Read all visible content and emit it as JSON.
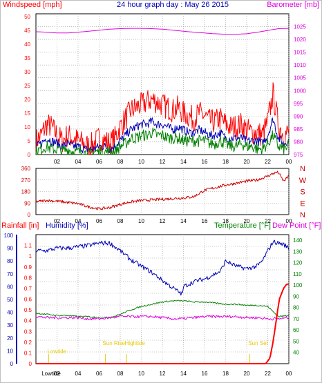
{
  "chart_data": [
    {
      "type": "line",
      "title": "24 hour graph day : May 26 2015",
      "ylabel_left": "Windspeed [mph]",
      "ylabel_right": "Barometer [mb]",
      "ylim_left": [
        0,
        50
      ],
      "ylim_right": [
        975,
        1030
      ],
      "yticks_left": [
        "0",
        "5",
        "10",
        "15",
        "20",
        "25",
        "30",
        "35",
        "40",
        "45",
        "50"
      ],
      "yticks_right": [
        "975",
        "980",
        "985",
        "990",
        "995",
        "1000",
        "1005",
        "1010",
        "1015",
        "1020",
        "1025"
      ],
      "xlim": [
        0,
        24
      ],
      "xticks": [
        "02",
        "04",
        "06",
        "08",
        "10",
        "12",
        "14",
        "16",
        "18",
        "20",
        "22",
        "00"
      ],
      "grid": true,
      "colors": {
        "gust": "#ff0000",
        "average": "#0000b4",
        "wind": "#008000",
        "barometer": "#e000e0"
      },
      "series": [
        {
          "key": "gust",
          "x": [
            0,
            0.5,
            1,
            1.5,
            2,
            2.5,
            3,
            3.5,
            4,
            4.5,
            5,
            5.5,
            6,
            6.5,
            7,
            7.5,
            8,
            8.5,
            9,
            9.5,
            10,
            10.5,
            11,
            11.5,
            12,
            12.5,
            13,
            13.5,
            14,
            14.5,
            15,
            15.5,
            16,
            16.5,
            17,
            17.5,
            18,
            18.5,
            19,
            19.5,
            20,
            20.5,
            21,
            21.5,
            22,
            22.5,
            23,
            23.5,
            24
          ],
          "values": [
            5,
            7,
            11,
            10,
            7,
            5,
            7,
            6,
            5,
            4,
            3,
            4,
            6,
            5,
            4,
            6,
            10,
            13,
            16,
            17,
            18,
            19,
            20,
            19,
            18,
            17,
            16,
            17,
            15,
            14,
            13,
            15,
            14,
            12,
            12,
            13,
            11,
            10,
            10,
            11,
            9,
            8,
            8,
            7,
            12,
            22,
            11,
            7,
            8
          ]
        },
        {
          "key": "average",
          "x": [
            0,
            0.5,
            1,
            1.5,
            2,
            2.5,
            3,
            3.5,
            4,
            4.5,
            5,
            5.5,
            6,
            6.5,
            7,
            7.5,
            8,
            8.5,
            9,
            9.5,
            10,
            10.5,
            11,
            11.5,
            12,
            12.5,
            13,
            13.5,
            14,
            14.5,
            15,
            15.5,
            16,
            16.5,
            17,
            17.5,
            18,
            18.5,
            19,
            19.5,
            20,
            20.5,
            21,
            21.5,
            22,
            22.5,
            23,
            23.5,
            24
          ],
          "values": [
            3,
            4,
            6,
            5,
            4,
            3,
            4,
            3,
            3,
            2,
            2,
            2,
            3,
            3,
            2,
            3,
            5,
            7,
            9,
            10,
            11,
            11,
            12,
            11,
            11,
            10,
            9,
            10,
            9,
            8,
            8,
            9,
            8,
            7,
            7,
            8,
            6,
            6,
            6,
            6,
            5,
            5,
            5,
            4,
            7,
            13,
            6,
            4,
            5
          ]
        },
        {
          "key": "wind",
          "x": [
            0,
            0.5,
            1,
            1.5,
            2,
            2.5,
            3,
            3.5,
            4,
            4.5,
            5,
            5.5,
            6,
            6.5,
            7,
            7.5,
            8,
            8.5,
            9,
            9.5,
            10,
            10.5,
            11,
            11.5,
            12,
            12.5,
            13,
            13.5,
            14,
            14.5,
            15,
            15.5,
            16,
            16.5,
            17,
            17.5,
            18,
            18.5,
            19,
            19.5,
            20,
            20.5,
            21,
            21.5,
            22,
            22.5,
            23,
            23.5,
            24
          ],
          "values": [
            1,
            2,
            3,
            2,
            2,
            1,
            2,
            1,
            1,
            1,
            0,
            1,
            1,
            1,
            1,
            1,
            3,
            4,
            6,
            6,
            7,
            7,
            8,
            7,
            7,
            6,
            6,
            6,
            5,
            5,
            5,
            5,
            5,
            4,
            4,
            5,
            4,
            3,
            3,
            4,
            3,
            3,
            2,
            2,
            4,
            7,
            3,
            2,
            3
          ]
        },
        {
          "key": "barometer",
          "axis": "right",
          "x": [
            0,
            1,
            2,
            3,
            4,
            5,
            6,
            7,
            8,
            9,
            10,
            11,
            12,
            13,
            14,
            15,
            16,
            17,
            18,
            19,
            20,
            21,
            22,
            23,
            24
          ],
          "values": [
            1023,
            1022.8,
            1022.5,
            1022.5,
            1022.8,
            1023.2,
            1023.6,
            1024,
            1024.2,
            1024.3,
            1024.3,
            1024.2,
            1024,
            1023.6,
            1023.2,
            1022.8,
            1022.5,
            1022.2,
            1022,
            1022,
            1022.2,
            1022.8,
            1023.5,
            1024.2,
            1024.3
          ]
        }
      ]
    },
    {
      "type": "line",
      "y_labels_right": [
        "N",
        "W",
        "S",
        "E",
        "N"
      ],
      "ylim": [
        0,
        360
      ],
      "yticks": [
        "0",
        "90",
        "180",
        "270",
        "360"
      ],
      "xlim": [
        0,
        24
      ],
      "xticks": [
        "02",
        "04",
        "06",
        "08",
        "10",
        "12",
        "14",
        "16",
        "18",
        "20",
        "22",
        "00"
      ],
      "grid": true,
      "colors": {
        "direction": "#cc0000"
      },
      "series": [
        {
          "key": "direction",
          "x": [
            0,
            1,
            2,
            3,
            4,
            5,
            6,
            7,
            8,
            9,
            10,
            11,
            12,
            13,
            14,
            15,
            16,
            17,
            18,
            19,
            20,
            21,
            22,
            22.5,
            23,
            23.5,
            24
          ],
          "values": [
            100,
            110,
            105,
            95,
            85,
            60,
            45,
            55,
            80,
            100,
            110,
            115,
            120,
            125,
            130,
            140,
            190,
            210,
            230,
            245,
            260,
            270,
            300,
            320,
            330,
            260,
            300
          ]
        }
      ]
    },
    {
      "type": "line",
      "ylabel_rainfall": "Rainfall [in]",
      "ylabel_humidity": "Humidity [%]",
      "ylabel_temperature": "Temperature [°F]",
      "ylabel_dewpoint": "Dew Point [°F]",
      "ylim_rainfall": [
        0,
        1.2
      ],
      "ylim_humidity": [
        0,
        100
      ],
      "ylim_temperature": [
        30,
        145
      ],
      "yticks_rainfall": [
        "0",
        "0.1",
        "0.2",
        "0.3",
        "0.4",
        "0.5",
        "0.6",
        "0.7",
        "0.8",
        "0.9",
        "1",
        "1.1"
      ],
      "yticks_humidity": [
        "0",
        "10",
        "20",
        "30",
        "40",
        "50",
        "60",
        "70",
        "80",
        "90",
        "100"
      ],
      "yticks_temperature": [
        "40",
        "50",
        "60",
        "70",
        "80",
        "90",
        "100",
        "110",
        "120",
        "130",
        "140"
      ],
      "xlim": [
        0,
        24
      ],
      "xticks": [
        "02",
        "04",
        "06",
        "08",
        "10",
        "12",
        "14",
        "16",
        "18",
        "20",
        "22",
        "00"
      ],
      "grid": true,
      "colors": {
        "humidity": "#0000b4",
        "temperature": "#008000",
        "dewpoint": "#e000e0",
        "rainfall": "#ff0000",
        "event": "#e6c800"
      },
      "annotations": [
        {
          "label": "Lowtide",
          "x": 1.2
        },
        {
          "label": "Sun Rise",
          "x": 6.6
        },
        {
          "label": "Hightide",
          "x": 8.6
        },
        {
          "label": "Sun Set",
          "x": 20.3
        },
        {
          "label": "Lowtide",
          "x": 1.2
        }
      ],
      "series": [
        {
          "key": "humidity",
          "axis": "humidity",
          "x": [
            0,
            1,
            2,
            3,
            4,
            5,
            6,
            7,
            8,
            9,
            10,
            11,
            12,
            13,
            13.9,
            14,
            14.5,
            15,
            16,
            17,
            17.5,
            18,
            18.5,
            19,
            20,
            21,
            21.5,
            22,
            22.5,
            23,
            23.5,
            24
          ],
          "values": [
            88,
            88,
            90,
            90,
            91,
            92,
            94,
            94,
            88,
            81,
            76,
            71,
            65,
            59,
            54,
            60,
            62,
            64,
            66,
            70,
            72,
            80,
            78,
            76,
            74,
            76,
            80,
            88,
            95,
            94,
            93,
            90
          ]
        },
        {
          "key": "temperature",
          "axis": "temperature",
          "x": [
            0,
            1,
            2,
            3,
            4,
            5,
            6,
            7,
            8,
            9,
            10,
            11,
            12,
            13,
            14,
            15,
            16,
            17,
            18,
            19,
            20,
            21,
            22,
            23,
            24
          ],
          "values": [
            75,
            74,
            73,
            73,
            72,
            72,
            71,
            71,
            74,
            78,
            81,
            83,
            85,
            86,
            86,
            85,
            85,
            84,
            83,
            83,
            82,
            82,
            81,
            72,
            73
          ]
        },
        {
          "key": "dewpoint",
          "axis": "temperature",
          "x": [
            0,
            1,
            2,
            3,
            4,
            5,
            6,
            7,
            8,
            9,
            10,
            11,
            12,
            13,
            14,
            15,
            16,
            17,
            18,
            19,
            20,
            21,
            22,
            23,
            24
          ],
          "values": [
            72,
            71,
            71,
            71,
            71,
            70,
            70,
            71,
            72,
            72,
            72,
            72,
            71,
            70,
            70,
            71,
            72,
            72,
            72,
            72,
            71,
            71,
            70,
            70,
            71
          ]
        },
        {
          "key": "rainfall",
          "axis": "rainfall",
          "x": [
            0,
            21.8,
            22.2,
            22.5,
            22.8,
            23.1,
            23.5,
            23.8,
            24
          ],
          "values": [
            0,
            0,
            0.05,
            0.2,
            0.4,
            0.6,
            0.7,
            0.74,
            0.74
          ]
        }
      ]
    }
  ]
}
